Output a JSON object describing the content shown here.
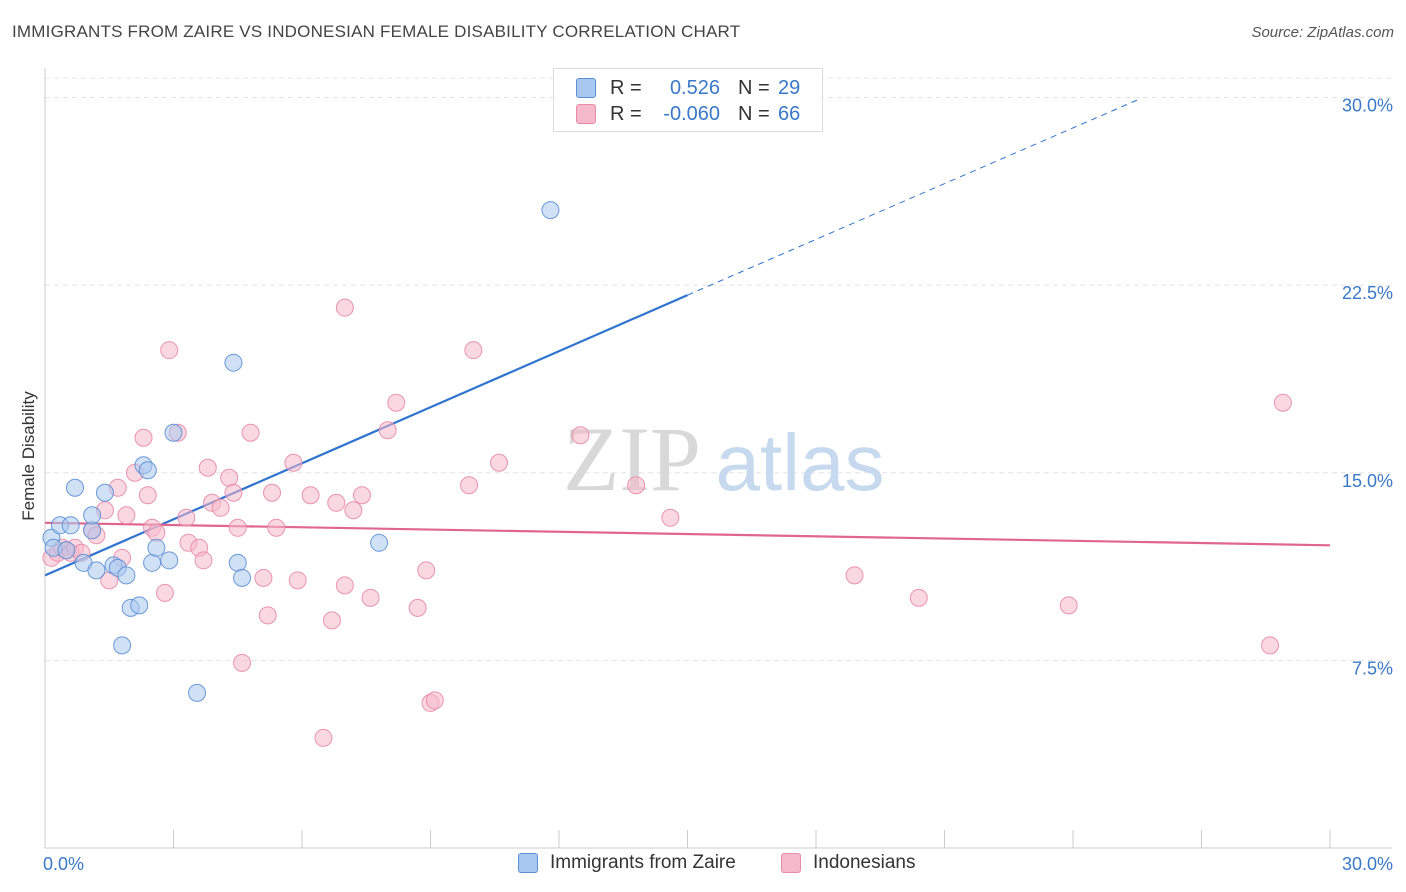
{
  "header": {
    "title": "IMMIGRANTS FROM ZAIRE VS INDONESIAN FEMALE DISABILITY CORRELATION CHART",
    "source": "Source: ZipAtlas.com"
  },
  "watermark": {
    "zip": "ZIP",
    "atlas": "atlas"
  },
  "legend": {
    "r_label": "R =",
    "n_label": "N =",
    "rows": [
      {
        "series": "Immigrants from Zaire",
        "r": "0.526",
        "n": "29"
      },
      {
        "series": "Indonesians",
        "r": "-0.060",
        "n": "66"
      }
    ]
  },
  "colors": {
    "blue_fill": "#a9c8ef",
    "blue_stroke": "#5b8fd6",
    "blue_line": "#2f74cf",
    "pink_fill": "#f6b8cb",
    "pink_stroke": "#e88aa8",
    "pink_line": "#e0668f",
    "grid": "#e4e4e4",
    "tick_label": "#3a78c9"
  },
  "chart_data": {
    "type": "scatter",
    "title": "IMMIGRANTS FROM ZAIRE VS INDONESIAN FEMALE DISABILITY CORRELATION CHART",
    "xlabel": "",
    "ylabel": "Female Disability",
    "xlim": [
      0,
      30
    ],
    "ylim": [
      0,
      31.5
    ],
    "x_tick_labels": [
      {
        "value": 0,
        "label": "0.0%"
      },
      {
        "value": 30,
        "label": "30.0%"
      }
    ],
    "y_tick_labels": [
      {
        "value": 7.5,
        "label": "7.5%"
      },
      {
        "value": 15.0,
        "label": "15.0%"
      },
      {
        "value": 22.5,
        "label": "22.5%"
      },
      {
        "value": 30.0,
        "label": "30.0%"
      }
    ],
    "x_minor_ticks": [
      0,
      3,
      6,
      9,
      12,
      15,
      18,
      21,
      24,
      27,
      30
    ],
    "grid": true,
    "legend_position": "top-center",
    "series": [
      {
        "name": "Immigrants from Zaire",
        "color": "blue",
        "points": [
          [
            0.15,
            12.4
          ],
          [
            0.2,
            12.0
          ],
          [
            0.35,
            12.9
          ],
          [
            0.5,
            11.9
          ],
          [
            0.6,
            12.9
          ],
          [
            0.7,
            14.4
          ],
          [
            0.9,
            11.4
          ],
          [
            1.1,
            12.7
          ],
          [
            1.1,
            13.3
          ],
          [
            1.2,
            11.1
          ],
          [
            1.4,
            14.2
          ],
          [
            1.6,
            11.3
          ],
          [
            1.7,
            11.2
          ],
          [
            1.8,
            8.1
          ],
          [
            1.9,
            10.9
          ],
          [
            2.0,
            9.6
          ],
          [
            2.2,
            9.7
          ],
          [
            2.3,
            15.3
          ],
          [
            2.4,
            15.1
          ],
          [
            2.5,
            11.4
          ],
          [
            2.6,
            12.0
          ],
          [
            2.9,
            11.5
          ],
          [
            3.0,
            16.6
          ],
          [
            3.55,
            6.2
          ],
          [
            4.4,
            19.4
          ],
          [
            4.5,
            11.4
          ],
          [
            4.6,
            10.8
          ],
          [
            7.8,
            12.2
          ],
          [
            11.8,
            25.5
          ]
        ],
        "trend": {
          "x0": 0,
          "y0": 10.9,
          "x1": 15.0,
          "y1": 22.1,
          "dashed_to_x": 25.5,
          "dashed_to_y": 29.9
        }
      },
      {
        "name": "Indonesians",
        "color": "pink",
        "points": [
          [
            0.15,
            11.6
          ],
          [
            0.3,
            11.8
          ],
          [
            0.4,
            12.0
          ],
          [
            0.5,
            11.9
          ],
          [
            0.6,
            11.8
          ],
          [
            0.7,
            12.0
          ],
          [
            0.85,
            11.8
          ],
          [
            1.1,
            12.7
          ],
          [
            1.2,
            12.5
          ],
          [
            1.4,
            13.5
          ],
          [
            1.5,
            10.7
          ],
          [
            1.7,
            14.4
          ],
          [
            1.8,
            11.6
          ],
          [
            1.9,
            13.3
          ],
          [
            2.1,
            15.0
          ],
          [
            2.3,
            16.4
          ],
          [
            2.4,
            14.1
          ],
          [
            2.5,
            12.8
          ],
          [
            2.6,
            12.6
          ],
          [
            2.8,
            10.2
          ],
          [
            2.9,
            19.9
          ],
          [
            3.1,
            16.6
          ],
          [
            3.3,
            13.2
          ],
          [
            3.35,
            12.2
          ],
          [
            3.6,
            12.0
          ],
          [
            3.7,
            11.5
          ],
          [
            3.8,
            15.2
          ],
          [
            3.9,
            13.8
          ],
          [
            4.1,
            13.6
          ],
          [
            4.3,
            14.8
          ],
          [
            4.4,
            14.2
          ],
          [
            4.5,
            12.8
          ],
          [
            4.6,
            7.4
          ],
          [
            4.8,
            16.6
          ],
          [
            5.1,
            10.8
          ],
          [
            5.2,
            9.3
          ],
          [
            5.3,
            14.2
          ],
          [
            5.4,
            12.8
          ],
          [
            5.8,
            15.4
          ],
          [
            5.9,
            10.7
          ],
          [
            6.2,
            14.1
          ],
          [
            6.5,
            4.4
          ],
          [
            6.7,
            9.1
          ],
          [
            6.8,
            13.8
          ],
          [
            7.0,
            10.5
          ],
          [
            7.0,
            21.6
          ],
          [
            7.2,
            13.5
          ],
          [
            7.4,
            14.1
          ],
          [
            7.6,
            10.0
          ],
          [
            8.0,
            16.7
          ],
          [
            8.2,
            17.8
          ],
          [
            8.7,
            9.6
          ],
          [
            8.9,
            11.1
          ],
          [
            9.0,
            5.8
          ],
          [
            9.1,
            5.9
          ],
          [
            9.9,
            14.5
          ],
          [
            10.0,
            19.9
          ],
          [
            10.6,
            15.4
          ],
          [
            12.5,
            16.5
          ],
          [
            13.8,
            14.5
          ],
          [
            14.6,
            13.2
          ],
          [
            18.9,
            10.9
          ],
          [
            20.4,
            10.0
          ],
          [
            23.9,
            9.7
          ],
          [
            28.6,
            8.1
          ],
          [
            28.9,
            17.8
          ]
        ],
        "trend": {
          "x0": 0,
          "y0": 13.0,
          "x1": 30.0,
          "y1": 12.1
        }
      }
    ]
  }
}
